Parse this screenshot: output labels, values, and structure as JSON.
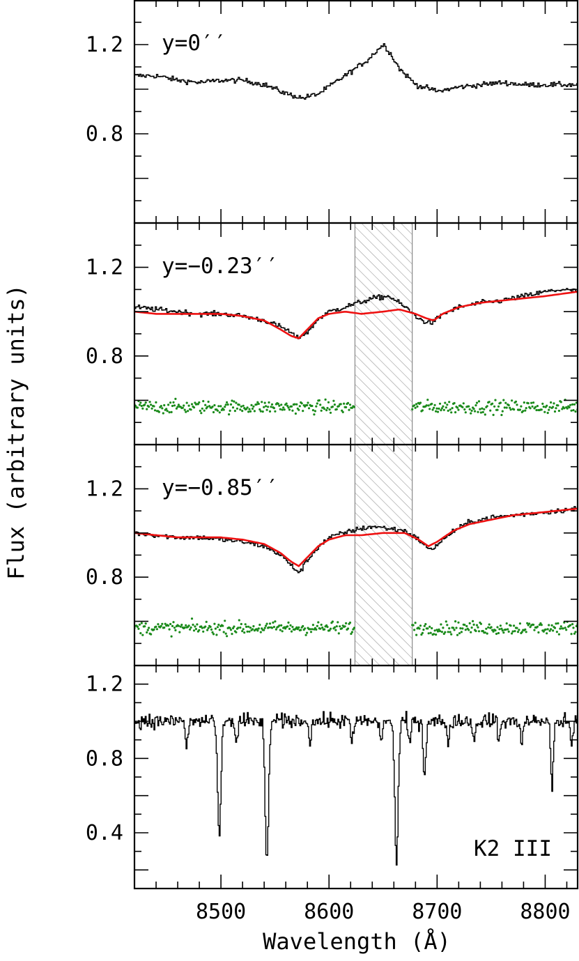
{
  "chart_data": {
    "type": "line",
    "xlabel": "Wavelength (Å)",
    "ylabel": "Flux (arbitrary units)",
    "xlim": [
      8420,
      8830
    ],
    "x_ticks": [
      8500,
      8600,
      8700,
      8800
    ],
    "colors": {
      "spectrum": "#000000",
      "model": "#ee1111",
      "residuals": "#1a8a1a",
      "masked_region": "#888888"
    },
    "masked_region": [
      8624,
      8677
    ],
    "panels": [
      {
        "label": "y=0′′",
        "ylim": [
          0.4,
          1.4
        ],
        "y_ticks": [
          0.8,
          1.2
        ],
        "series": [
          {
            "role": "observed",
            "x": [
              8420,
              8440,
              8460,
              8480,
              8500,
              8520,
              8540,
              8560,
              8575,
              8590,
              8605,
              8620,
              8635,
              8645,
              8650,
              8655,
              8665,
              8680,
              8700,
              8720,
              8740,
              8760,
              8780,
              8800,
              8830
            ],
            "y": [
              1.06,
              1.06,
              1.04,
              1.03,
              1.04,
              1.04,
              1.02,
              0.98,
              0.96,
              0.98,
              1.03,
              1.08,
              1.13,
              1.18,
              1.2,
              1.17,
              1.09,
              1.02,
              0.99,
              1.01,
              1.02,
              1.03,
              1.02,
              1.02,
              1.02
            ]
          }
        ]
      },
      {
        "label": "y=−0.23′′",
        "ylim": [
          0.4,
          1.4
        ],
        "y_ticks": [
          0.8,
          1.2
        ],
        "series": [
          {
            "role": "observed",
            "x": [
              8420,
              8440,
              8460,
              8480,
              8500,
              8520,
              8540,
              8560,
              8570,
              8580,
              8590,
              8600,
              8620,
              8640,
              8655,
              8670,
              8685,
              8695,
              8705,
              8720,
              8740,
              8760,
              8780,
              8800,
              8815,
              8830
            ],
            "y": [
              1.02,
              1.01,
              1.0,
              0.99,
              0.99,
              0.98,
              0.96,
              0.92,
              0.88,
              0.91,
              0.97,
              1.0,
              1.03,
              1.06,
              1.07,
              1.02,
              0.96,
              0.95,
              0.99,
              1.02,
              1.04,
              1.05,
              1.07,
              1.09,
              1.1,
              1.09
            ]
          },
          {
            "role": "model",
            "x": [
              8420,
              8440,
              8460,
              8480,
              8500,
              8520,
              8540,
              8555,
              8565,
              8572,
              8580,
              8590,
              8600,
              8615,
              8630,
              8650,
              8665,
              8680,
              8690,
              8697,
              8705,
              8720,
              8740,
              8760,
              8780,
              8800,
              8830
            ],
            "y": [
              1.0,
              0.99,
              0.99,
              0.99,
              0.99,
              0.98,
              0.96,
              0.92,
              0.89,
              0.88,
              0.92,
              0.97,
              0.99,
              1.0,
              0.99,
              1.0,
              1.01,
              0.99,
              0.97,
              0.96,
              0.99,
              1.02,
              1.04,
              1.05,
              1.06,
              1.07,
              1.09
            ]
          },
          {
            "role": "residuals",
            "x_range": [
              [
                8420,
                8624
              ],
              [
                8677,
                8830
              ]
            ],
            "center": 0.57,
            "scatter": 0.03
          }
        ]
      },
      {
        "label": "y=−0.85′′",
        "ylim": [
          0.4,
          1.4
        ],
        "y_ticks": [
          0.8,
          1.2
        ],
        "series": [
          {
            "role": "observed",
            "x": [
              8420,
              8440,
              8460,
              8480,
              8500,
              8520,
              8540,
              8555,
              8565,
              8572,
              8580,
              8590,
              8600,
              8620,
              8640,
              8655,
              8670,
              8685,
              8693,
              8700,
              8715,
              8730,
              8750,
              8770,
              8790,
              8810,
              8830
            ],
            "y": [
              1.0,
              0.99,
              0.98,
              0.98,
              0.97,
              0.96,
              0.94,
              0.9,
              0.85,
              0.82,
              0.88,
              0.94,
              0.98,
              1.01,
              1.03,
              1.02,
              1.01,
              0.96,
              0.92,
              0.95,
              1.01,
              1.05,
              1.07,
              1.08,
              1.09,
              1.1,
              1.11
            ]
          },
          {
            "role": "model",
            "x": [
              8420,
              8440,
              8460,
              8480,
              8500,
              8520,
              8540,
              8555,
              8565,
              8572,
              8580,
              8590,
              8600,
              8615,
              8630,
              8650,
              8670,
              8683,
              8692,
              8700,
              8715,
              8730,
              8750,
              8770,
              8790,
              8810,
              8830
            ],
            "y": [
              1.0,
              0.99,
              0.98,
              0.98,
              0.98,
              0.97,
              0.95,
              0.91,
              0.87,
              0.85,
              0.89,
              0.94,
              0.97,
              0.99,
              0.99,
              1.0,
              1.0,
              0.97,
              0.94,
              0.96,
              1.01,
              1.04,
              1.06,
              1.08,
              1.09,
              1.1,
              1.11
            ]
          },
          {
            "role": "residuals",
            "x_range": [
              [
                8420,
                8624
              ],
              [
                8677,
                8830
              ]
            ],
            "center": 0.57,
            "scatter": 0.03
          }
        ]
      },
      {
        "label": "K2 III",
        "ylim": [
          0.1,
          1.3
        ],
        "y_ticks": [
          0.4,
          0.8,
          1.2
        ],
        "series": [
          {
            "role": "template",
            "continuum": 1.02,
            "lines": [
              {
                "x": 8498,
                "depth": 0.4
              },
              {
                "x": 8542,
                "depth": 0.26
              },
              {
                "x": 8662,
                "depth": 0.27
              },
              {
                "x": 8688,
                "depth": 0.72
              },
              {
                "x": 8806,
                "depth": 0.66
              },
              {
                "x": 8468,
                "depth": 0.88
              },
              {
                "x": 8514,
                "depth": 0.9
              },
              {
                "x": 8582,
                "depth": 0.92
              },
              {
                "x": 8621,
                "depth": 0.9
              },
              {
                "x": 8648,
                "depth": 0.91
              },
              {
                "x": 8674,
                "depth": 0.9
              },
              {
                "x": 8710,
                "depth": 0.9
              },
              {
                "x": 8734,
                "depth": 0.91
              },
              {
                "x": 8757,
                "depth": 0.92
              },
              {
                "x": 8778,
                "depth": 0.9
              },
              {
                "x": 8824,
                "depth": 0.88
              }
            ]
          }
        ]
      }
    ]
  }
}
